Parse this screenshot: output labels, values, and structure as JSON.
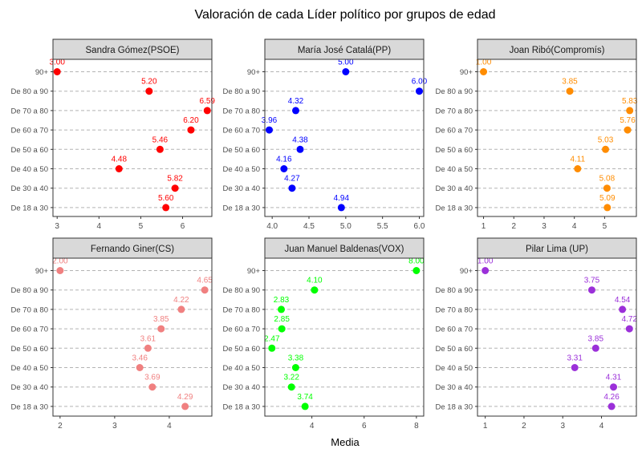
{
  "title": "Valoración de cada Líder político por grupos de edad",
  "xlabel": "Media",
  "colors": {
    "grid": "#b3b3b3",
    "strip_bg": "#d9d9d9",
    "panel_border": "#333333",
    "axis_text": "#4d4d4d"
  },
  "chart_data": [
    {
      "type": "scatter",
      "strip": "Sandra Gómez(PSOE)",
      "color": "#ff0000",
      "categories": [
        "De 18 a 30",
        "De 30 a 40",
        "De 40 a 50",
        "De 50 a 60",
        "De 60 a 70",
        "De 70 a 80",
        "De 80 a 90",
        "90+"
      ],
      "values": [
        5.6,
        5.82,
        4.48,
        5.46,
        6.2,
        6.59,
        5.2,
        3.0
      ],
      "labels": [
        "5.60",
        "5.82",
        "4.48",
        "5.46",
        "6.20",
        "6.59",
        "5.20",
        "3.00"
      ],
      "xlim": [
        2.9,
        6.7
      ],
      "xticks": [
        3,
        4,
        5,
        6
      ],
      "xtick_labels": [
        "3",
        "4",
        "5",
        "6"
      ]
    },
    {
      "type": "scatter",
      "strip": "María José Catalá(PP)",
      "color": "#0000ff",
      "categories": [
        "De 18 a 30",
        "De 30 a 40",
        "De 40 a 50",
        "De 50 a 60",
        "De 60 a 70",
        "De 70 a 80",
        "De 80 a 90",
        "90+"
      ],
      "values": [
        4.94,
        4.27,
        4.16,
        4.38,
        3.96,
        4.32,
        6.0,
        5.0
      ],
      "labels": [
        "4.94",
        "4.27",
        "4.16",
        "4.38",
        "3.96",
        "4.32",
        "6.00",
        "5.00"
      ],
      "xlim": [
        3.9,
        6.06
      ],
      "xticks": [
        4.0,
        4.5,
        5.0,
        5.5,
        6.0
      ],
      "xtick_labels": [
        "4.0",
        "4.5",
        "5.0",
        "5.5",
        "6.0"
      ]
    },
    {
      "type": "scatter",
      "strip": "Joan Ribó(Compromís)",
      "color": "#ff8c00",
      "categories": [
        "De 18 a 30",
        "De 30 a 40",
        "De 40 a 50",
        "De 50 a 60",
        "De 60 a 70",
        "De 70 a 80",
        "De 80 a 90",
        "90+"
      ],
      "values": [
        5.09,
        5.08,
        4.11,
        5.03,
        5.76,
        5.83,
        3.85,
        1.0
      ],
      "labels": [
        "5.09",
        "5.08",
        "4.11",
        "5.03",
        "5.76",
        "5.83",
        "3.85",
        "1.00"
      ],
      "xlim": [
        0.8,
        6.05
      ],
      "xticks": [
        1,
        2,
        3,
        4,
        5
      ],
      "xtick_labels": [
        "1",
        "2",
        "3",
        "4",
        "5"
      ]
    },
    {
      "type": "scatter",
      "strip": "Fernando Giner(CS)",
      "color": "#f08080",
      "categories": [
        "De 18 a 30",
        "De 30 a 40",
        "De 40 a 50",
        "De 50 a 60",
        "De 60 a 70",
        "De 70 a 80",
        "De 80 a 90",
        "90+"
      ],
      "values": [
        4.29,
        3.69,
        3.46,
        3.61,
        3.85,
        4.22,
        4.65,
        2.0
      ],
      "labels": [
        "4.29",
        "3.69",
        "3.46",
        "3.61",
        "3.85",
        "4.22",
        "4.65",
        "2.00"
      ],
      "xlim": [
        1.87,
        4.78
      ],
      "xticks": [
        2,
        3,
        4
      ],
      "xtick_labels": [
        "2",
        "3",
        "4"
      ]
    },
    {
      "type": "scatter",
      "strip": "Juan Manuel Baldenas(VOX)",
      "color": "#00ff00",
      "categories": [
        "De 18 a 30",
        "De 30 a 40",
        "De 40 a 50",
        "De 50 a 60",
        "De 60 a 70",
        "De 70 a 80",
        "De 80 a 90",
        "90+"
      ],
      "values": [
        3.74,
        3.22,
        3.38,
        2.47,
        2.85,
        2.83,
        4.1,
        8.0
      ],
      "labels": [
        "3.74",
        "3.22",
        "3.38",
        "2.47",
        "2.85",
        "2.83",
        "4.10",
        "8.00"
      ],
      "xlim": [
        2.2,
        8.28
      ],
      "xticks": [
        4,
        6,
        8
      ],
      "xtick_labels": [
        "4",
        "6",
        "8"
      ]
    },
    {
      "type": "scatter",
      "strip": "Pilar Lima (UP)",
      "color": "#9b30d9",
      "categories": [
        "De 18 a 30",
        "De 30 a 40",
        "De 40 a 50",
        "De 50 a 60",
        "De 60 a 70",
        "De 70 a 80",
        "De 80 a 90",
        "90+"
      ],
      "values": [
        4.26,
        4.31,
        3.31,
        3.85,
        4.72,
        4.54,
        3.75,
        1.0
      ],
      "labels": [
        "4.26",
        "4.31",
        "3.31",
        "3.85",
        "4.72",
        "4.54",
        "3.75",
        "1.00"
      ],
      "xlim": [
        0.8,
        4.9
      ],
      "xticks": [
        1,
        2,
        3,
        4
      ],
      "xtick_labels": [
        "1",
        "2",
        "3",
        "4"
      ]
    }
  ]
}
